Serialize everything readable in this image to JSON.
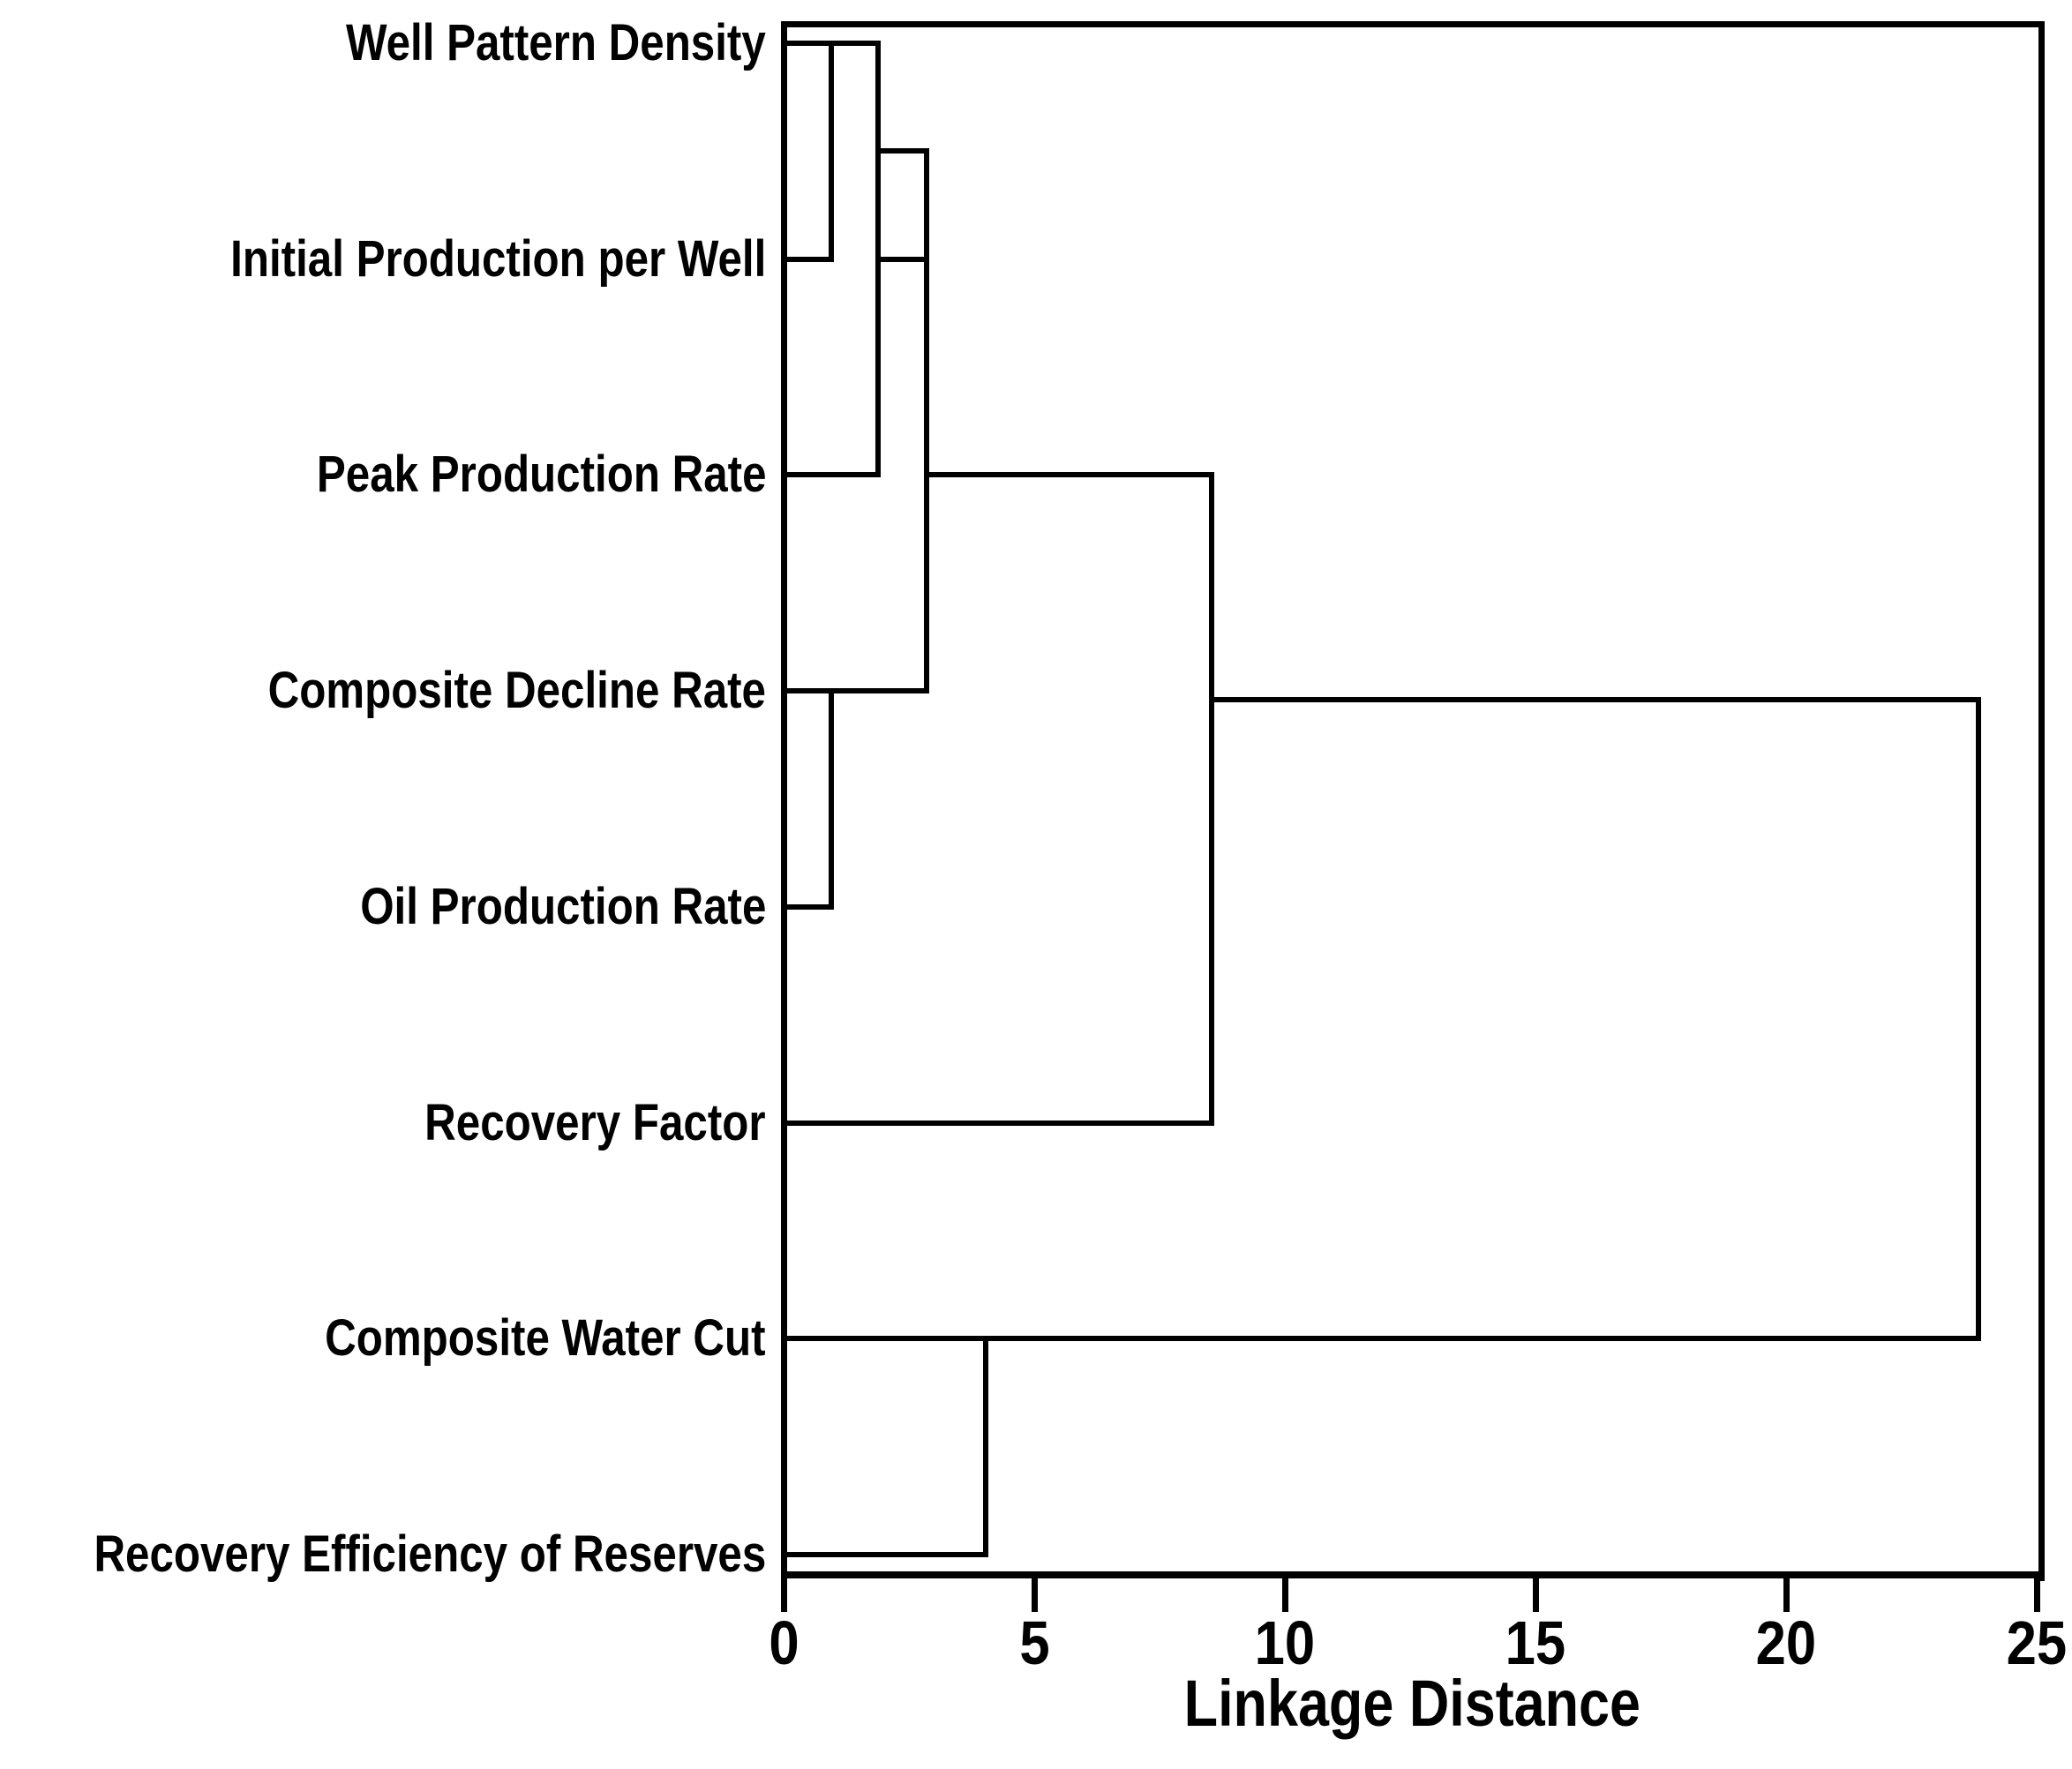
{
  "chart_data": {
    "type": "dendrogram",
    "orientation": "horizontal, leaves on left, root on right",
    "xlabel": "Linkage Distance",
    "x_axis": {
      "min": 0,
      "max": 25,
      "ticks": [
        "0",
        "5",
        "10",
        "15",
        "20",
        "25"
      ]
    },
    "grid": false,
    "legend": false,
    "line_color": "#000000",
    "background_color": "#ffffff",
    "leaves": [
      "Well Pattern Density",
      "Initial Production per Well",
      "Peak Production Rate",
      "Composite Decline Rate",
      "Oil Production Rate",
      "Recovery Factor",
      "Composite Water Cut",
      "Recovery Efficiency of Reserves"
    ],
    "merges": [
      {
        "clusters": [
          "Well Pattern Density",
          "Initial Production per Well"
        ],
        "distance": 0.95
      },
      {
        "clusters": [
          "Composite Decline Rate",
          "Oil Production Rate"
        ],
        "distance": 0.95
      },
      {
        "clusters": [
          "{Well Pattern Density, Initial Production per Well}",
          "Peak Production Rate"
        ],
        "distance": 1.9
      },
      {
        "clusters": [
          "{Well Pattern Density, Initial Production per Well, Peak Production Rate}",
          "{Composite Decline Rate, Oil Production Rate}"
        ],
        "distance": 2.85
      },
      {
        "clusters": [
          "Composite Water Cut",
          "Recovery Efficiency of Reserves"
        ],
        "distance": 4.0
      },
      {
        "clusters": [
          "{upper five variables}",
          "Recovery Factor"
        ],
        "distance": 8.5
      },
      {
        "clusters": [
          "{upper six variables}",
          "{Composite Water Cut, Recovery Efficiency of Reserves}"
        ],
        "distance": 23.8
      }
    ],
    "drawing": {
      "h_segments": [
        {
          "name": "wpd-stem-and-cluster-line",
          "row": 0,
          "d0": 0,
          "d1": 1.88
        },
        {
          "name": "ipw-stem",
          "row": 1,
          "d0": 0,
          "d1": 0.95
        },
        {
          "name": "rung-upper",
          "row": 0.5,
          "d0": 1.88,
          "d1": 2.85
        },
        {
          "name": "rung-lower",
          "row": 1,
          "d0": 1.88,
          "d1": 2.85
        },
        {
          "name": "ppr-stem",
          "row": 2,
          "d0": 0,
          "d1": 1.88
        },
        {
          "name": "cdr-stem",
          "row": 3,
          "d0": 0,
          "d1": 2.85
        },
        {
          "name": "opr-stem",
          "row": 4,
          "d0": 0,
          "d1": 0.95
        },
        {
          "name": "rf-stem",
          "row": 5,
          "d0": 0,
          "d1": 8.54
        },
        {
          "name": "cwc-stem-to-root",
          "row": 6,
          "d0": 0,
          "d1": 23.84
        },
        {
          "name": "rer-stem",
          "row": 7,
          "d0": 0,
          "d1": 4.03
        },
        {
          "name": "cluster-line-to-mid-merge",
          "row": 2,
          "d0": 2.85,
          "d1": 8.54
        },
        {
          "name": "cluster-line-to-root",
          "row": 3.04,
          "d0": 8.54,
          "d1": 23.84
        }
      ],
      "v_segments": [
        {
          "name": "merge-wpd-ipw",
          "d": 0.95,
          "row0": 0,
          "row1": 1
        },
        {
          "name": "merge-plus-ppr",
          "d": 1.88,
          "row0": 0,
          "row1": 2
        },
        {
          "name": "merge-top3-cdropr",
          "d": 2.85,
          "row0": 0.5,
          "row1": 3
        },
        {
          "name": "merge-cdr-opr",
          "d": 0.95,
          "row0": 3,
          "row1": 4
        },
        {
          "name": "merge-cwc-rer",
          "d": 4.03,
          "row0": 6,
          "row1": 7
        },
        {
          "name": "merge-plus-rf",
          "d": 8.54,
          "row0": 2,
          "row1": 5
        },
        {
          "name": "root-merge",
          "d": 23.84,
          "row0": 3.04,
          "row1": 6
        }
      ]
    }
  }
}
